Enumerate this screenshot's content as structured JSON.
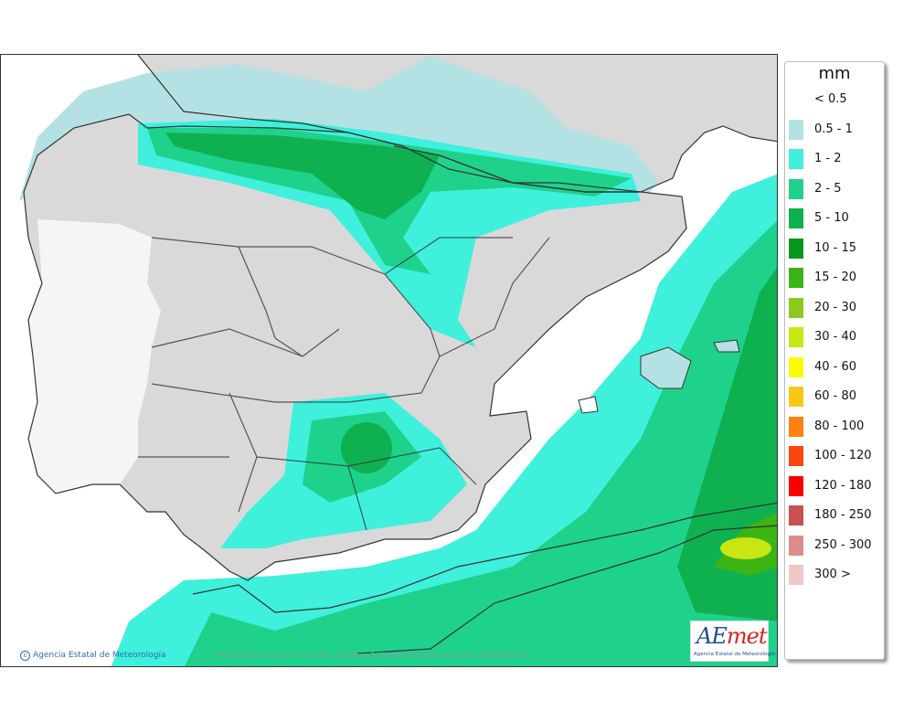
{
  "legend": {
    "unit": "mm",
    "items": [
      {
        "label": "< 0.5",
        "color": "#ffffff"
      },
      {
        "label": "0.5 - 1",
        "color": "#b4e1e4"
      },
      {
        "label": "1 - 2",
        "color": "#3ff0dc"
      },
      {
        "label": "2 - 5",
        "color": "#1fd28c"
      },
      {
        "label": "5 - 10",
        "color": "#0fb050"
      },
      {
        "label": "10 - 15",
        "color": "#07961e"
      },
      {
        "label": "15 - 20",
        "color": "#3cb414"
      },
      {
        "label": "20 - 30",
        "color": "#8cc81e"
      },
      {
        "label": "30 - 40",
        "color": "#c8e614"
      },
      {
        "label": "40 - 60",
        "color": "#fafa00"
      },
      {
        "label": "60 - 80",
        "color": "#fac814"
      },
      {
        "label": "80 - 100",
        "color": "#fa8214"
      },
      {
        "label": "100 - 120",
        "color": "#fa460a"
      },
      {
        "label": "120 - 180",
        "color": "#fa0000"
      },
      {
        "label": "180 - 250",
        "color": "#c85050"
      },
      {
        "label": "250 - 300",
        "color": "#dc8c8c"
      },
      {
        "label": "300 >",
        "color": "#f0c8c8"
      }
    ]
  },
  "credit": {
    "mark": "c",
    "text": "Agencia Estatal de Meteorología"
  },
  "caption": "Precipitación en 24 h media. Validez: 2026031  Pasada modelo: 2026031500",
  "logo": {
    "word_a": "AE",
    "word_b": "met",
    "sub": "Agencia Estatal de Meteorología"
  },
  "colors": {
    "land": "#d9d9d9",
    "sea": "#ffffff",
    "border": "#333333"
  }
}
